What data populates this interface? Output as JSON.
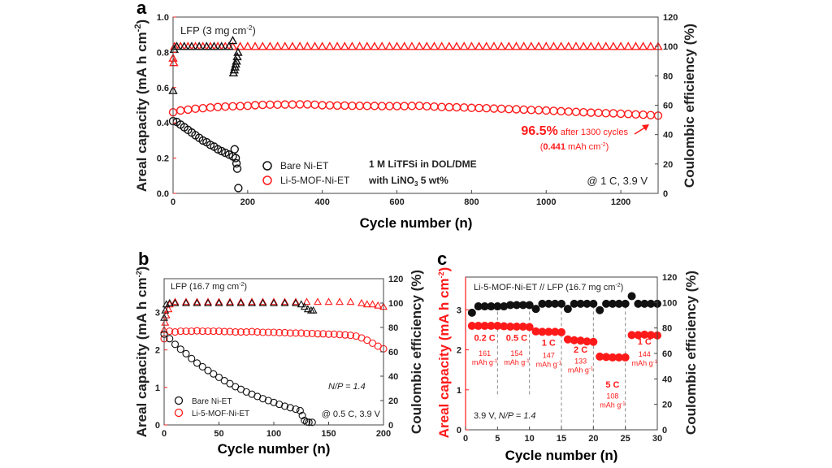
{
  "colors": {
    "red": "#ff1a1a",
    "black": "#111111",
    "divider": "#888888"
  },
  "chart_data": [
    {
      "panel": "a",
      "type": "scatter",
      "xlabel": "Cycle number (n)",
      "ylabel_left": "Areal capacity (mA h cm-2)",
      "ylabel_right": "Coulombic efficiency (%)",
      "xlim": [
        0,
        1300
      ],
      "ylim_left": [
        0,
        1.0
      ],
      "ylim_right": [
        0,
        120
      ],
      "xticks": [
        0,
        200,
        400,
        600,
        800,
        1000,
        1200
      ],
      "yticks_left": [
        "0.0",
        "0.2",
        "0.4",
        "0.6",
        "0.8",
        "1.0"
      ],
      "yticks_right": [
        0,
        20,
        40,
        60,
        80,
        100,
        120
      ],
      "annotations": {
        "loading": "LFP (3 mg cm",
        "loading_sup": "-2",
        "loading_end": ")",
        "electrolyte1": "1 M LiTFSi in DOL/DME",
        "electrolyte2a": "with LiNO",
        "electrolyte2sub": "3",
        "electrolyte2b": " 5 wt%",
        "condition": "@ 1 C, 3.9 V",
        "retention": "96.5%",
        "retention_tail": " after 1300 cycles",
        "final_open": "(",
        "final_value": "0.441",
        "final_unit": " mAh cm",
        "final_sup": "-2",
        "final_close": ")"
      },
      "legend": [
        "Bare Ni-ET",
        "Li-5-MOF-Ni-ET"
      ],
      "series": [
        {
          "name": "Li-5-MOF-Ni-ET",
          "kind": "capacity",
          "axis": "left",
          "color": "red",
          "marker": "circle",
          "x": [
            0,
            20,
            40,
            60,
            80,
            100,
            120,
            140,
            160,
            180,
            200,
            220,
            240,
            260,
            280,
            300,
            320,
            340,
            360,
            380,
            400,
            420,
            440,
            460,
            480,
            500,
            520,
            540,
            560,
            580,
            600,
            620,
            640,
            660,
            680,
            700,
            720,
            740,
            760,
            780,
            800,
            820,
            840,
            860,
            880,
            900,
            920,
            940,
            960,
            980,
            1000,
            1020,
            1040,
            1060,
            1080,
            1100,
            1120,
            1140,
            1160,
            1180,
            1200,
            1220,
            1240,
            1260,
            1280,
            1300
          ],
          "y": [
            0.46,
            0.47,
            0.475,
            0.48,
            0.483,
            0.487,
            0.49,
            0.492,
            0.494,
            0.495,
            0.497,
            0.5,
            0.502,
            0.503,
            0.503,
            0.504,
            0.504,
            0.505,
            0.505,
            0.503,
            0.5,
            0.499,
            0.498,
            0.498,
            0.497,
            0.497,
            0.496,
            0.496,
            0.495,
            0.495,
            0.495,
            0.495,
            0.496,
            0.497,
            0.494,
            0.492,
            0.49,
            0.489,
            0.488,
            0.487,
            0.485,
            0.484,
            0.483,
            0.481,
            0.48,
            0.478,
            0.477,
            0.475,
            0.473,
            0.472,
            0.47,
            0.468,
            0.466,
            0.464,
            0.462,
            0.46,
            0.458,
            0.457,
            0.455,
            0.454,
            0.452,
            0.45,
            0.448,
            0.446,
            0.444,
            0.441
          ]
        },
        {
          "name": "Li-5-MOF-Ni-ET",
          "kind": "efficiency",
          "axis": "right",
          "color": "red",
          "marker": "triangle",
          "x": [
            0,
            2,
            4,
            20,
            40,
            60,
            80,
            100,
            120,
            140,
            160,
            180,
            200,
            220,
            240,
            260,
            280,
            300,
            320,
            340,
            360,
            380,
            400,
            420,
            440,
            460,
            480,
            500,
            520,
            540,
            560,
            580,
            600,
            620,
            640,
            660,
            680,
            700,
            720,
            740,
            760,
            780,
            800,
            820,
            840,
            860,
            880,
            900,
            920,
            940,
            960,
            980,
            1000,
            1020,
            1040,
            1060,
            1080,
            1100,
            1120,
            1140,
            1160,
            1180,
            1200,
            1220,
            1240,
            1260,
            1280,
            1300
          ],
          "y": [
            92,
            89,
            100,
            100,
            100,
            100,
            100,
            100,
            100,
            100,
            100,
            100,
            100,
            100,
            100,
            100,
            100,
            100,
            100,
            100,
            100,
            100,
            100,
            100,
            100,
            100,
            100,
            100,
            100,
            100,
            100,
            100,
            100,
            100,
            100,
            100,
            100,
            100,
            100,
            100,
            100,
            100,
            100,
            100,
            100,
            100,
            100,
            100,
            100,
            100,
            100,
            100,
            100,
            100,
            100,
            100,
            100,
            100,
            100,
            100,
            100,
            100,
            100,
            100,
            100,
            100,
            100,
            100
          ]
        },
        {
          "name": "Bare Ni-ET",
          "kind": "capacity",
          "axis": "left",
          "color": "black",
          "marker": "circle",
          "x": [
            0,
            10,
            20,
            30,
            40,
            50,
            60,
            70,
            80,
            90,
            100,
            110,
            120,
            130,
            140,
            150,
            160,
            165,
            168,
            170,
            172,
            175
          ],
          "y": [
            0.41,
            0.405,
            0.39,
            0.375,
            0.36,
            0.345,
            0.33,
            0.315,
            0.3,
            0.29,
            0.275,
            0.265,
            0.25,
            0.24,
            0.23,
            0.22,
            0.21,
            0.25,
            0.2,
            0.17,
            0.14,
            0.03
          ]
        },
        {
          "name": "Bare Ni-ET",
          "kind": "efficiency",
          "axis": "right",
          "color": "black",
          "marker": "triangle",
          "x": [
            0,
            3,
            10,
            30,
            50,
            70,
            90,
            110,
            130,
            150,
            160,
            162,
            164,
            166,
            168,
            170,
            172,
            174
          ],
          "y": [
            70,
            98,
            100,
            100,
            100,
            100,
            100,
            100,
            100,
            100,
            104,
            82,
            84,
            86,
            88,
            90,
            93,
            96
          ]
        }
      ]
    },
    {
      "panel": "b",
      "type": "scatter",
      "xlabel": "Cycle number (n)",
      "ylabel_left": "Areal capacity (mA h cm-2)",
      "ylabel_right": "Coulombic efficiency (%)",
      "xlim": [
        0,
        200
      ],
      "ylim_left": [
        0,
        3.9
      ],
      "ylim_right": [
        0,
        120
      ],
      "xticks": [
        0,
        50,
        100,
        150,
        200
      ],
      "yticks_left": [
        "0",
        "1",
        "2",
        "3"
      ],
      "yticks_right": [
        0,
        20,
        40,
        60,
        80,
        100,
        120
      ],
      "annotations": {
        "loading": "LFP (16.7 mg cm",
        "loading_sup": "-2",
        "loading_end": ")",
        "np": "N/P = 1.4",
        "condition": "@ 0.5 C, 3.9 V"
      },
      "legend": [
        "Bare Ni-ET",
        "Li-5-MOF-Ni-ET"
      ],
      "series": [
        {
          "name": "Li-5-MOF-Ni-ET",
          "kind": "capacity",
          "axis": "left",
          "color": "red",
          "marker": "circle",
          "x": [
            0,
            5,
            10,
            15,
            20,
            25,
            30,
            35,
            40,
            45,
            50,
            55,
            60,
            65,
            70,
            75,
            80,
            85,
            90,
            95,
            100,
            105,
            110,
            115,
            120,
            125,
            130,
            135,
            140,
            145,
            150,
            155,
            160,
            165,
            170,
            175,
            180,
            185,
            190,
            195,
            200
          ],
          "y": [
            2.3,
            2.5,
            2.48,
            2.5,
            2.5,
            2.5,
            2.51,
            2.5,
            2.5,
            2.5,
            2.5,
            2.49,
            2.49,
            2.48,
            2.48,
            2.48,
            2.49,
            2.48,
            2.47,
            2.47,
            2.47,
            2.46,
            2.46,
            2.45,
            2.45,
            2.45,
            2.44,
            2.44,
            2.43,
            2.43,
            2.42,
            2.42,
            2.41,
            2.4,
            2.39,
            2.37,
            2.32,
            2.26,
            2.18,
            2.1,
            2.03
          ]
        },
        {
          "name": "Li-5-MOF-Ni-ET",
          "kind": "efficiency",
          "axis": "right",
          "color": "red",
          "marker": "triangle",
          "x": [
            0,
            1,
            2,
            4,
            5,
            10,
            20,
            30,
            40,
            50,
            60,
            70,
            80,
            90,
            100,
            110,
            120,
            130,
            140,
            150,
            160,
            170,
            180,
            185,
            190,
            195,
            200
          ],
          "y": [
            78,
            84,
            90,
            95,
            99,
            101,
            101,
            101,
            101,
            101,
            101,
            101,
            101,
            101,
            101,
            101,
            101,
            101,
            101,
            101,
            101,
            101,
            100,
            99,
            99,
            98,
            97
          ]
        },
        {
          "name": "Bare Ni-ET",
          "kind": "capacity",
          "axis": "left",
          "color": "black",
          "marker": "circle",
          "x": [
            0,
            5,
            10,
            15,
            20,
            25,
            30,
            35,
            40,
            45,
            50,
            55,
            60,
            65,
            70,
            75,
            80,
            85,
            90,
            95,
            100,
            105,
            110,
            115,
            120,
            124,
            126,
            128,
            130,
            132,
            135
          ],
          "y": [
            2.42,
            2.3,
            2.15,
            2.02,
            1.9,
            1.77,
            1.65,
            1.55,
            1.45,
            1.36,
            1.27,
            1.18,
            1.1,
            1.02,
            0.95,
            0.88,
            0.82,
            0.76,
            0.7,
            0.65,
            0.6,
            0.55,
            0.5,
            0.46,
            0.42,
            0.38,
            0.25,
            0.12,
            0.08,
            0.07,
            0.07
          ]
        },
        {
          "name": "Bare Ni-ET",
          "kind": "efficiency",
          "axis": "right",
          "color": "black",
          "marker": "triangle",
          "x": [
            0,
            1,
            2,
            5,
            10,
            20,
            30,
            40,
            50,
            60,
            70,
            80,
            90,
            100,
            110,
            120,
            125,
            128,
            131,
            134,
            136
          ],
          "y": [
            88,
            94,
            99,
            100,
            100,
            100,
            100,
            100,
            100,
            100,
            100,
            100,
            100,
            100,
            100,
            100,
            99,
            97,
            95,
            94,
            94
          ]
        }
      ]
    },
    {
      "panel": "c",
      "type": "scatter",
      "xlabel": "Cycle number (n)",
      "ylabel_left": "Areal capacity (mA h cm-2)",
      "ylabel_right": "Coulombic efficiency (%)",
      "xlim": [
        0,
        30
      ],
      "ylim_left": [
        0,
        3.82
      ],
      "ylim_right": [
        0,
        120
      ],
      "xticks": [
        0,
        5,
        10,
        15,
        20,
        25,
        30
      ],
      "yticks_left": [
        "0",
        "1",
        "2",
        "3"
      ],
      "yticks_right": [
        0,
        20,
        40,
        60,
        80,
        100,
        120
      ],
      "dividers": [
        5,
        10,
        15,
        20,
        25
      ],
      "annotations": {
        "title": "Li-5-MOF-Ni-ET // LFP (16.7 mg cm",
        "title_sup": "-2",
        "title_end": ")",
        "condition": "3.9 V, ",
        "np": "N/P = 1.4"
      },
      "rates": [
        {
          "rate": "0.2 C",
          "value": "161",
          "unit": "mAh g",
          "sup": "-1"
        },
        {
          "rate": "0.5 C",
          "value": "154",
          "unit": "mAh g",
          "sup": "-1"
        },
        {
          "rate": "1 C",
          "value": "147",
          "unit": "mAh g",
          "sup": "-1"
        },
        {
          "rate": "2 C",
          "value": "133",
          "unit": "mAh g",
          "sup": "-1"
        },
        {
          "rate": "5 C",
          "value": "108",
          "unit": "mAh g",
          "sup": "-1"
        },
        {
          "rate": "1 C",
          "value": "144",
          "unit": "mAh g",
          "sup": "-1"
        }
      ],
      "series": [
        {
          "name": "",
          "kind": "capacity",
          "axis": "left",
          "color": "red",
          "marker": "filled-circle",
          "x": [
            1,
            2,
            3,
            4,
            5,
            6,
            7,
            8,
            9,
            10,
            11,
            12,
            13,
            14,
            15,
            16,
            17,
            18,
            19,
            20,
            21,
            22,
            23,
            24,
            25,
            26,
            27,
            28,
            29,
            30
          ],
          "y": [
            2.6,
            2.6,
            2.6,
            2.6,
            2.6,
            2.59,
            2.58,
            2.58,
            2.58,
            2.57,
            2.46,
            2.45,
            2.45,
            2.45,
            2.44,
            2.26,
            2.24,
            2.23,
            2.21,
            2.2,
            1.83,
            1.82,
            1.81,
            1.81,
            1.81,
            2.37,
            2.37,
            2.38,
            2.37,
            2.36
          ]
        },
        {
          "name": "",
          "kind": "efficiency",
          "axis": "right",
          "color": "black",
          "marker": "filled-circle",
          "x": [
            1,
            2,
            3,
            4,
            5,
            6,
            7,
            8,
            9,
            10,
            11,
            12,
            13,
            14,
            15,
            16,
            17,
            18,
            19,
            20,
            21,
            22,
            23,
            24,
            25,
            26,
            27,
            28,
            29,
            30
          ],
          "y": [
            92,
            97,
            97,
            97,
            97,
            97,
            98,
            98,
            98,
            98,
            95,
            99,
            99,
            99,
            99,
            95,
            99,
            99,
            99,
            99,
            94,
            99,
            99,
            99,
            99,
            105,
            99,
            99,
            99,
            99
          ]
        }
      ]
    }
  ]
}
